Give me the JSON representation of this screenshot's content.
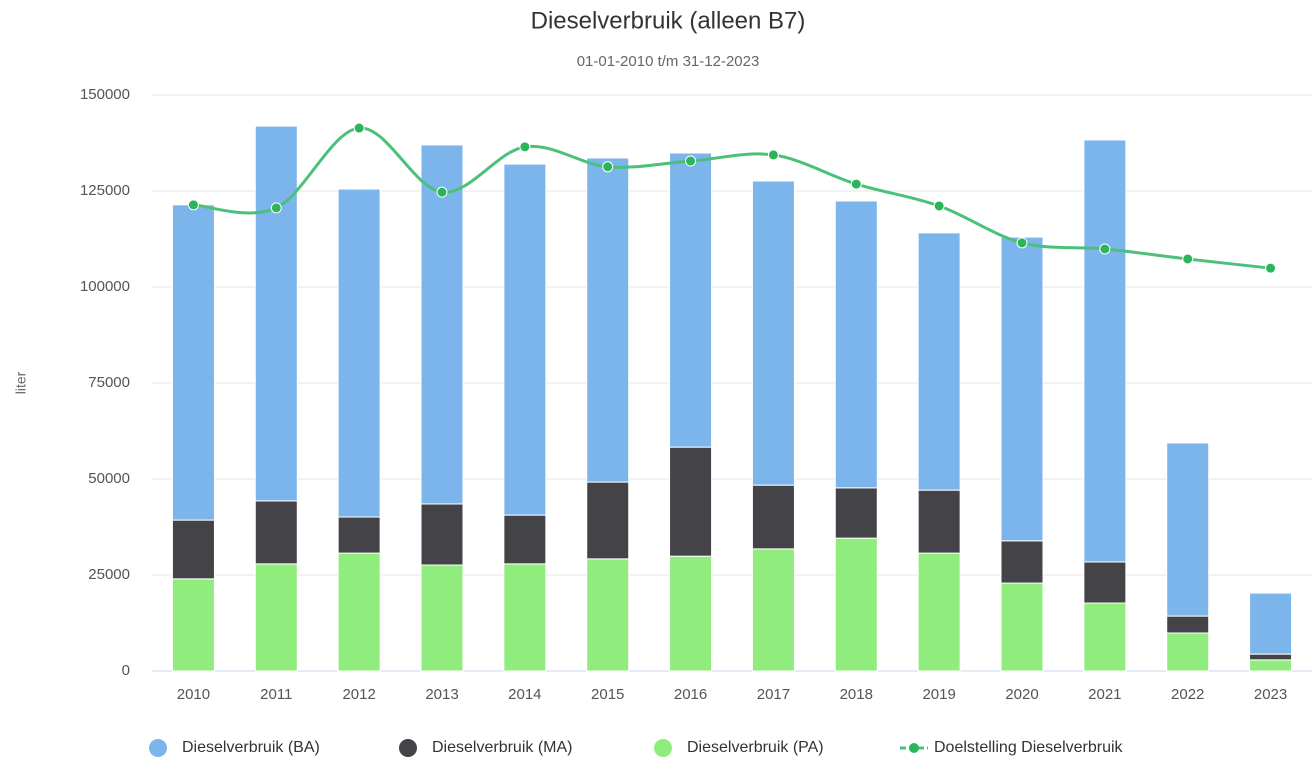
{
  "chart_data": {
    "type": "bar",
    "stacked": true,
    "title": "Dieselverbruik (alleen B7)",
    "subtitle": "01-01-2010 t/m 31-12-2023",
    "y_label": "liter",
    "categories": [
      "2010",
      "2011",
      "2012",
      "2013",
      "2014",
      "2015",
      "2016",
      "2017",
      "2018",
      "2019",
      "2020",
      "2021",
      "2022",
      "2023"
    ],
    "series": [
      {
        "name": "Dieselverbruik (BA)",
        "type": "bar",
        "color": "#7cb5ec",
        "values": [
          82100,
          97600,
          85400,
          93500,
          91400,
          84400,
          76600,
          79200,
          74700,
          67000,
          79100,
          109900,
          45100,
          15900
        ]
      },
      {
        "name": "Dieselverbruik (MA)",
        "type": "bar",
        "color": "#434348",
        "values": [
          15300,
          16400,
          9400,
          15900,
          12700,
          20000,
          28400,
          16600,
          13100,
          16400,
          11000,
          10700,
          4400,
          1500
        ]
      },
      {
        "name": "Dieselverbruik (PA)",
        "type": "bar",
        "color": "#90ed7d",
        "values": [
          24000,
          27900,
          30700,
          27600,
          27900,
          29200,
          29900,
          31800,
          34600,
          30700,
          22900,
          17700,
          9900,
          2900
        ]
      },
      {
        "name": "Doelstelling Dieselverbruik",
        "type": "line",
        "color": "#4cc07a",
        "values": [
          121400,
          120600,
          141400,
          124700,
          136500,
          131300,
          132800,
          134400,
          126800,
          121100,
          111500,
          109900,
          107300,
          104900
        ]
      }
    ],
    "ylim": [
      0,
      150000
    ],
    "yticks": [
      0,
      25000,
      50000,
      75000,
      100000,
      125000,
      150000
    ],
    "grid": true,
    "legend": "bottom"
  }
}
